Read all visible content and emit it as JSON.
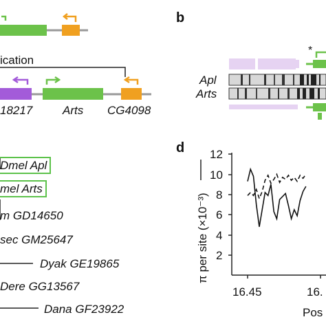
{
  "panel_a": {
    "label_duplication": "ication",
    "gene_left": "18217",
    "gene_arts": "Arts",
    "gene_cg": "CG4098"
  },
  "panel_b": {
    "letter": "b",
    "row1": "Apl",
    "row2": "Arts",
    "asterisk": "*"
  },
  "tree": {
    "taxa": [
      "Dmel Apl",
      "mel Arts",
      "m GD14650",
      "sec GM25647",
      "Dyak GE19865",
      "Dere GG13567",
      "Dana GF23922"
    ]
  },
  "panel_d": {
    "letter": "d",
    "ylabel": "π per site (×10⁻³)",
    "xlabel": "Pos",
    "yticks": [
      "12",
      "10",
      "8",
      "6",
      "4",
      "2"
    ],
    "xticks": [
      "16.45",
      "16."
    ]
  },
  "colors": {
    "green": "#6cc24a",
    "orange": "#f0a020",
    "purple": "#a35bd9",
    "lavender": "#e6d3f2",
    "box_border": "#5cc24a"
  },
  "chart_data": {
    "type": "line",
    "title": "",
    "xlabel": "Pos",
    "ylabel": "π per site (×10⁻³)",
    "xlim": [
      16.45,
      16.5
    ],
    "ylim": [
      2,
      12
    ],
    "series": [
      {
        "style": "solid",
        "x": [
          16.45,
          16.452,
          16.454,
          16.456,
          16.458,
          16.46,
          16.462,
          16.464,
          16.466,
          16.468,
          16.47,
          16.472,
          16.474,
          16.476,
          16.478,
          16.48,
          16.482,
          16.484,
          16.486,
          16.488,
          16.49
        ],
        "values": [
          9.3,
          10.5,
          9.8,
          7.0,
          4.8,
          6.5,
          8.2,
          7.9,
          9.0,
          6.3,
          5.6,
          7.5,
          7.8,
          8.1,
          6.9,
          5.6,
          6.5,
          5.9,
          7.4,
          8.3,
          8.8
        ]
      },
      {
        "style": "dashed",
        "x": [
          16.45,
          16.452,
          16.454,
          16.456,
          16.458,
          16.46,
          16.462,
          16.464,
          16.466,
          16.468,
          16.47,
          16.472,
          16.474,
          16.476,
          16.478,
          16.48,
          16.482,
          16.484,
          16.486,
          16.488,
          16.49
        ],
        "values": [
          7.9,
          8.2,
          7.9,
          8.5,
          7.6,
          8.3,
          9.4,
          9.9,
          9.1,
          9.5,
          10.0,
          9.2,
          9.7,
          9.5,
          9.9,
          9.4,
          9.7,
          9.3,
          9.9,
          9.6,
          10.0
        ]
      }
    ]
  }
}
